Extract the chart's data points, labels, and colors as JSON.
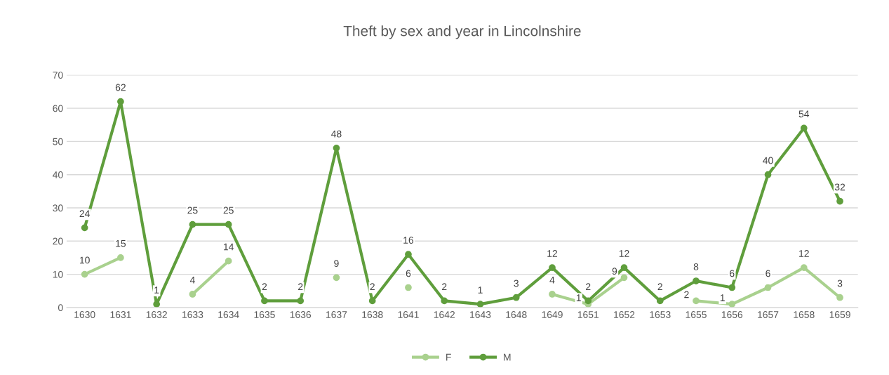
{
  "chart_data": {
    "type": "line",
    "title": "Theft by sex and year in Lincolnshire",
    "categories": [
      "1630",
      "1631",
      "1632",
      "1633",
      "1634",
      "1635",
      "1636",
      "1637",
      "1638",
      "1641",
      "1642",
      "1643",
      "1648",
      "1649",
      "1651",
      "1652",
      "1653",
      "1655",
      "1656",
      "1657",
      "1658",
      "1659"
    ],
    "series": [
      {
        "name": "F",
        "color": "#a9d18e",
        "values": [
          10,
          15,
          null,
          4,
          14,
          null,
          null,
          9,
          null,
          6,
          null,
          null,
          null,
          4,
          1,
          9,
          null,
          2,
          1,
          6,
          12,
          3
        ]
      },
      {
        "name": "M",
        "color": "#5f9e3c",
        "values": [
          24,
          62,
          1,
          25,
          25,
          2,
          2,
          48,
          2,
          16,
          2,
          1,
          3,
          12,
          2,
          12,
          2,
          8,
          6,
          40,
          54,
          32
        ]
      }
    ],
    "ylim": [
      0,
      70
    ],
    "yticks": [
      0,
      10,
      20,
      30,
      40,
      50,
      60,
      70
    ],
    "grid": "y",
    "legend": "bottom",
    "marker": "circle",
    "line_style": "solid",
    "data_labels": true
  }
}
